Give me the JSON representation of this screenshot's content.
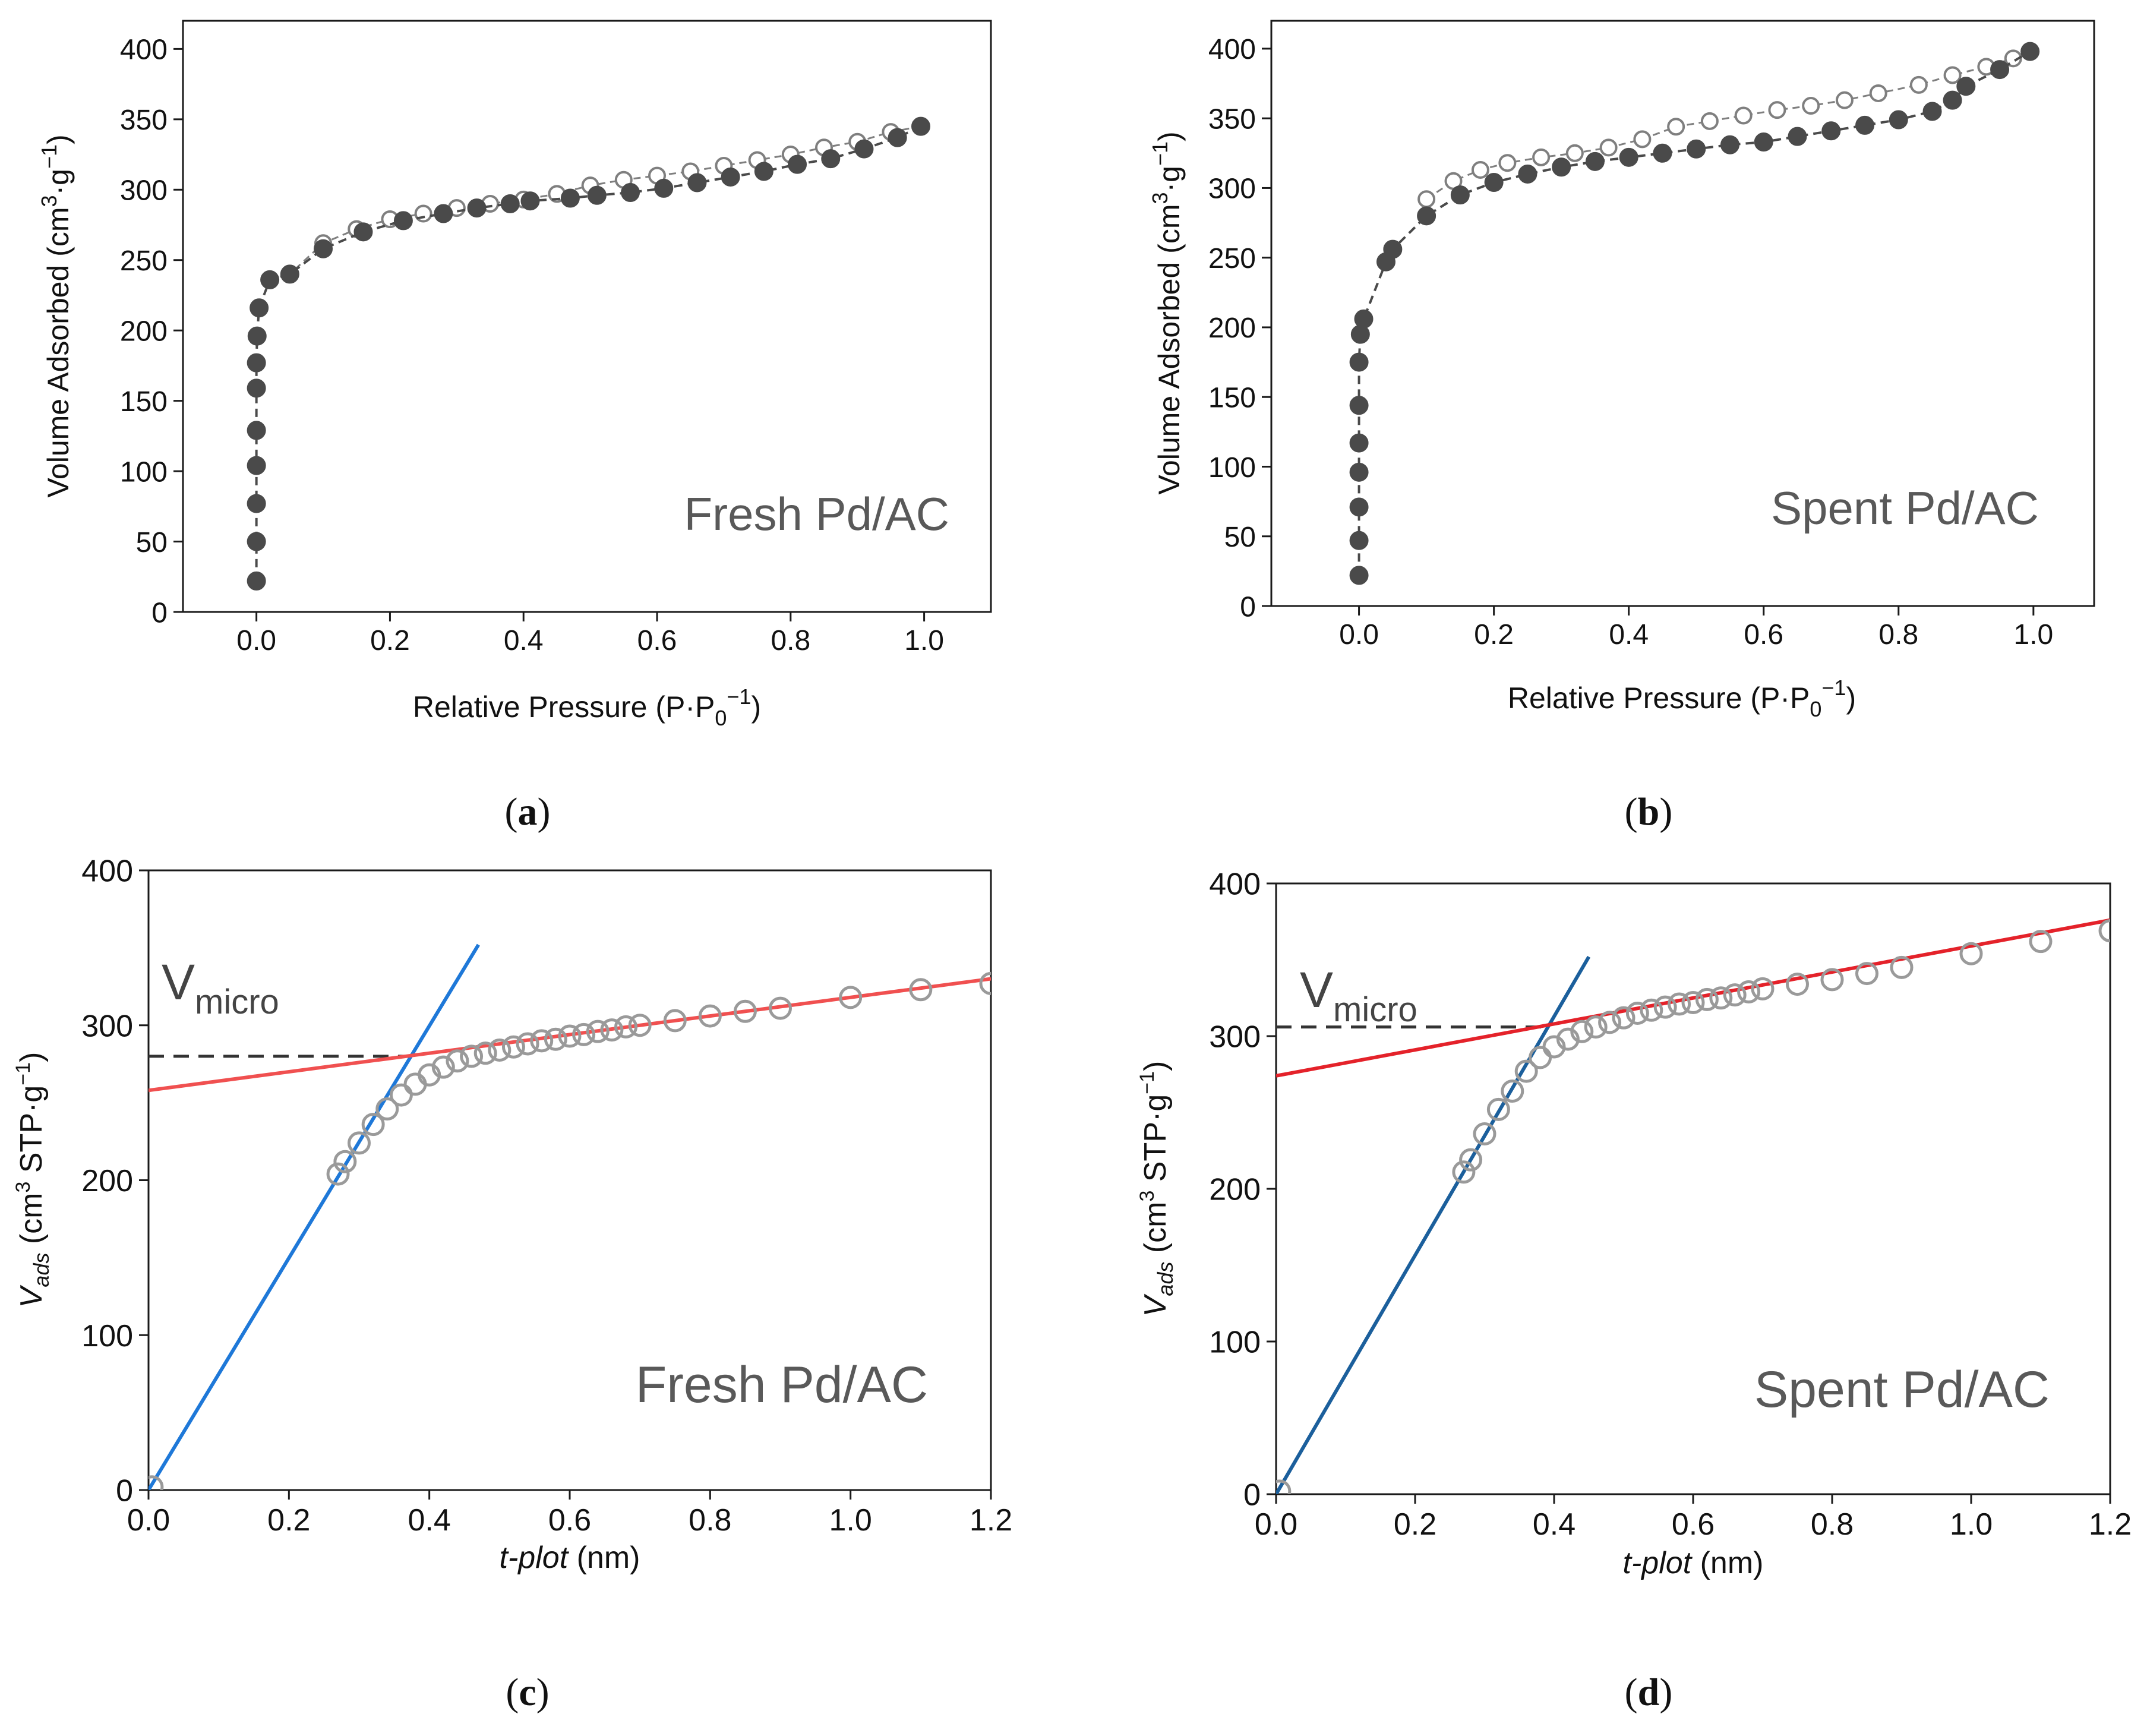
{
  "colors": {
    "axis": "#1a1a1a",
    "dark_marker": "#4a4a4a",
    "open_marker": "#7f7f7f",
    "tplot_marker": "#9a9a9a",
    "annotation": "#595959",
    "red_line_c": "#f05050",
    "red_line_d": "#e4222a",
    "blue_line_c": "#1e78d8",
    "blue_line_d": "#1b5f9c",
    "dashed": "#333333"
  },
  "chart_data": [
    {
      "id": "a",
      "type": "scatter",
      "panel_label": "a",
      "title": "",
      "annotation": "Fresh Pd/AC",
      "xlabel": "Relative Pressure (P·P0−1)",
      "ylabel": "Volume Adsorbed (cm3·g−1)",
      "xlim": [
        -0.11,
        1.1
      ],
      "ylim": [
        0,
        420
      ],
      "xticks": [
        0.0,
        0.2,
        0.4,
        0.6,
        0.8,
        1.0
      ],
      "xtick_labels": [
        "0.0",
        "0.2",
        "0.4",
        "0.6",
        "0.8",
        "1.0"
      ],
      "yticks": [
        0,
        50,
        100,
        150,
        200,
        250,
        300,
        350,
        400
      ],
      "ytick_labels": [
        "0",
        "50",
        "100",
        "150",
        "200",
        "250",
        "300",
        "350",
        "400"
      ],
      "series": [
        {
          "name": "Adsorption",
          "marker": "filled-circle",
          "x": [
            0.0,
            0.0,
            0.0,
            0.0,
            0.0,
            0.0,
            0.0,
            0.001,
            0.004,
            0.02,
            0.05,
            0.1,
            0.16,
            0.22,
            0.28,
            0.33,
            0.38,
            0.41,
            0.47,
            0.51,
            0.56,
            0.61,
            0.66,
            0.71,
            0.76,
            0.81,
            0.86,
            0.91,
            0.96,
            0.995
          ],
          "y": [
            22,
            50,
            77,
            104,
            129,
            159,
            177,
            196,
            216,
            236,
            240,
            258,
            270,
            278,
            283,
            287,
            290,
            292,
            294,
            296,
            298,
            301,
            305,
            309,
            313,
            318,
            322,
            329,
            337,
            345
          ]
        },
        {
          "name": "Desorption",
          "marker": "open-circle",
          "x": [
            0.995,
            0.95,
            0.9,
            0.85,
            0.8,
            0.75,
            0.7,
            0.65,
            0.6,
            0.55,
            0.5,
            0.45,
            0.4,
            0.35,
            0.3,
            0.25,
            0.2,
            0.15,
            0.1,
            0.05
          ],
          "y": [
            345,
            341,
            334,
            330,
            325,
            321,
            317,
            313,
            310,
            307,
            303,
            297,
            293,
            290,
            287,
            283,
            279,
            272,
            262,
            240
          ]
        }
      ]
    },
    {
      "id": "b",
      "type": "scatter",
      "panel_label": "b",
      "title": "",
      "annotation": "Spent Pd/AC",
      "xlabel": "Relative Pressure (P·P0−1)",
      "ylabel": "Volume Adsorbed (cm3·g−1)",
      "xlim": [
        -0.13,
        1.09
      ],
      "ylim": [
        0,
        420
      ],
      "xticks": [
        0.0,
        0.2,
        0.4,
        0.6,
        0.8,
        1.0
      ],
      "xtick_labels": [
        "0.0",
        "0.2",
        "0.4",
        "0.6",
        "0.8",
        "1.0"
      ],
      "yticks": [
        0,
        50,
        100,
        150,
        200,
        250,
        300,
        350,
        400
      ],
      "ytick_labels": [
        "0",
        "50",
        "100",
        "150",
        "200",
        "250",
        "300",
        "350",
        "400"
      ],
      "series": [
        {
          "name": "Adsorption",
          "marker": "filled-circle",
          "x": [
            0.0,
            0.0,
            0.0,
            0.0,
            0.0,
            0.0,
            0.0,
            0.002,
            0.007,
            0.04,
            0.05,
            0.1,
            0.15,
            0.2,
            0.25,
            0.3,
            0.35,
            0.4,
            0.45,
            0.5,
            0.55,
            0.6,
            0.65,
            0.7,
            0.75,
            0.8,
            0.85,
            0.88,
            0.9,
            0.95,
            0.995
          ],
          "y": [
            22,
            47,
            71,
            96,
            117,
            144,
            175,
            195,
            206,
            247,
            256,
            280,
            295,
            304,
            310,
            315,
            319,
            322,
            325,
            328,
            331,
            333,
            337,
            341,
            345,
            349,
            355,
            363,
            373,
            385,
            398
          ]
        },
        {
          "name": "Desorption",
          "marker": "open-circle",
          "x": [
            0.995,
            0.97,
            0.93,
            0.88,
            0.83,
            0.77,
            0.72,
            0.67,
            0.62,
            0.57,
            0.52,
            0.47,
            0.42,
            0.37,
            0.32,
            0.27,
            0.22,
            0.18,
            0.14,
            0.1
          ],
          "y": [
            398,
            393,
            387,
            381,
            374,
            368,
            363,
            359,
            356,
            352,
            348,
            344,
            335,
            329,
            325,
            322,
            318,
            313,
            305,
            292
          ]
        }
      ]
    },
    {
      "id": "c",
      "type": "scatter",
      "panel_label": "c",
      "title": "",
      "annotation": "Fresh Pd/AC",
      "vmicro_main": "V",
      "vmicro_sub": "micro",
      "xlabel_italic": "t-plot",
      "xlabel_rest": " (nm)",
      "ylabel_v": "V",
      "ylabel_sub": "ads",
      "ylabel_rest": " (cm3 STP·g−1)",
      "xlim": [
        0.0,
        1.2
      ],
      "ylim": [
        0,
        400
      ],
      "xticks": [
        0.0,
        0.2,
        0.4,
        0.6,
        0.8,
        1.0,
        1.2
      ],
      "xtick_labels": [
        "0.0",
        "0.2",
        "0.4",
        "0.6",
        "0.8",
        "1.0",
        "1.2"
      ],
      "yticks": [
        0,
        100,
        200,
        300,
        400
      ],
      "ytick_labels": [
        "0",
        "100",
        "200",
        "300",
        "400"
      ],
      "vmicro_value": 280,
      "lines": [
        {
          "name": "micropore fit",
          "color_key": "blue_line_c",
          "x": [
            0.0,
            0.47
          ],
          "y": [
            0,
            352
          ]
        },
        {
          "name": "multilayer fit",
          "color_key": "red_line_c",
          "x": [
            0.0,
            1.2
          ],
          "y": [
            258,
            330
          ]
        }
      ],
      "series": [
        {
          "name": "t-plot data",
          "marker": "open-circle",
          "x": [
            0.005,
            0.27,
            0.28,
            0.3,
            0.32,
            0.34,
            0.36,
            0.38,
            0.4,
            0.42,
            0.44,
            0.46,
            0.48,
            0.5,
            0.52,
            0.54,
            0.56,
            0.58,
            0.6,
            0.62,
            0.64,
            0.66,
            0.68,
            0.7,
            0.75,
            0.8,
            0.85,
            0.9,
            1.0,
            1.1,
            1.2
          ],
          "y": [
            2,
            204,
            212,
            224,
            236,
            246,
            255,
            262,
            268,
            273,
            277,
            280,
            282,
            284,
            286,
            288,
            290,
            291,
            293,
            294,
            296,
            297,
            299,
            300,
            303,
            306,
            309,
            311,
            318,
            323,
            327
          ]
        }
      ]
    },
    {
      "id": "d",
      "type": "scatter",
      "panel_label": "d",
      "title": "",
      "annotation": "Spent Pd/AC",
      "vmicro_main": "V",
      "vmicro_sub": "micro",
      "xlabel_italic": "t-plot",
      "xlabel_rest": " (nm)",
      "ylabel_v": "V",
      "ylabel_sub": "ads",
      "ylabel_rest": " (cm3 STP·g−1)",
      "xlim": [
        0.0,
        1.2
      ],
      "ylim": [
        0,
        400
      ],
      "xticks": [
        0.0,
        0.2,
        0.4,
        0.6,
        0.8,
        1.0,
        1.2
      ],
      "xtick_labels": [
        "0.0",
        "0.2",
        "0.4",
        "0.6",
        "0.8",
        "1.0",
        "1.2"
      ],
      "yticks": [
        0,
        100,
        200,
        300,
        400
      ],
      "ytick_labels": [
        "0",
        "100",
        "200",
        "300",
        "400"
      ],
      "vmicro_value": 306,
      "lines": [
        {
          "name": "micropore fit",
          "color_key": "blue_line_d",
          "x": [
            0.0,
            0.45
          ],
          "y": [
            0,
            352
          ]
        },
        {
          "name": "multilayer fit",
          "color_key": "red_line_d",
          "x": [
            0.0,
            1.2
          ],
          "y": [
            274,
            376
          ]
        }
      ],
      "series": [
        {
          "name": "t-plot data",
          "marker": "open-circle",
          "x": [
            0.005,
            0.27,
            0.28,
            0.3,
            0.32,
            0.34,
            0.36,
            0.38,
            0.4,
            0.42,
            0.44,
            0.46,
            0.48,
            0.5,
            0.52,
            0.54,
            0.56,
            0.58,
            0.6,
            0.62,
            0.64,
            0.66,
            0.68,
            0.7,
            0.75,
            0.8,
            0.85,
            0.9,
            1.0,
            1.1,
            1.2
          ],
          "y": [
            2,
            211,
            219,
            236,
            252,
            264,
            277,
            286,
            293,
            298,
            303,
            306,
            309,
            312,
            315,
            317,
            319,
            321,
            322,
            324,
            325,
            327,
            329,
            331,
            334,
            337,
            341,
            345,
            354,
            362,
            369
          ]
        }
      ]
    }
  ]
}
